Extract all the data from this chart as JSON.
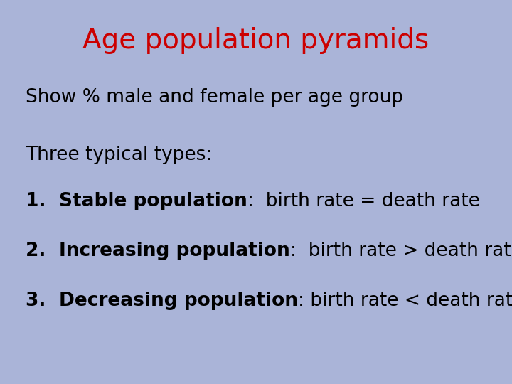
{
  "title": "Age population pyramids",
  "title_color": "#cc0000",
  "title_fontsize": 28,
  "background_color": "#aab4d8",
  "subtitle": "Show % male and female per age group",
  "subtitle_fontsize": 19,
  "intro": "Three typical types:",
  "intro_fontsize": 19,
  "items": [
    {
      "number": "1.  ",
      "bold_part": "Stable population",
      "rest": ":  birth rate = death rate"
    },
    {
      "number": "2.  ",
      "bold_part": "Increasing population",
      "rest": ":  birth rate > death rate"
    },
    {
      "number": "3.  ",
      "bold_part": "Decreasing population",
      "rest": ": birth rate < death rate"
    }
  ],
  "items_fontsize": 19,
  "text_color": "#000000",
  "font_family": "DejaVu Sans"
}
